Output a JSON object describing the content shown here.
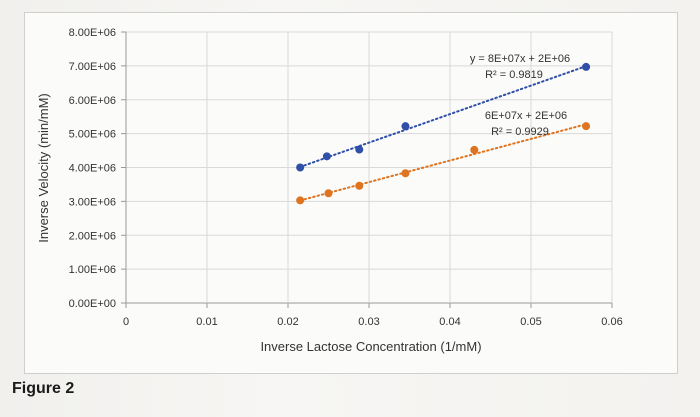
{
  "figure_label": "Figure 2",
  "chart_data": {
    "type": "scatter",
    "title": "",
    "xlabel": "Inverse Lactose Concentration (1/mM)",
    "ylabel": "Inverse Velocity (min/mM)",
    "xlim": [
      0,
      0.06
    ],
    "ylim": [
      0,
      8000000
    ],
    "x_ticks": [
      "0",
      "0.01",
      "0.02",
      "0.03",
      "0.04",
      "0.05",
      "0.06"
    ],
    "y_ticks": [
      "0.00E+00",
      "1.00E+06",
      "2.00E+06",
      "3.00E+06",
      "4.00E+06",
      "5.00E+06",
      "6.00E+06",
      "7.00E+06",
      "8.00E+06"
    ],
    "grid": true,
    "series": [
      {
        "color": "#2f4fa8",
        "points": [
          {
            "x": 0.0215,
            "y": 4000000
          },
          {
            "x": 0.0248,
            "y": 4330000
          },
          {
            "x": 0.0288,
            "y": 4530000
          },
          {
            "x": 0.0345,
            "y": 5220000
          },
          {
            "x": 0.0568,
            "y": 6970000
          }
        ],
        "trendline": {
          "equation": "y = 8E+07x + 2E+06",
          "r2": "R² = 0.9819"
        }
      },
      {
        "color": "#de7320",
        "points": [
          {
            "x": 0.0215,
            "y": 3030000
          },
          {
            "x": 0.025,
            "y": 3240000
          },
          {
            "x": 0.0288,
            "y": 3460000
          },
          {
            "x": 0.0345,
            "y": 3830000
          },
          {
            "x": 0.043,
            "y": 4520000
          },
          {
            "x": 0.0568,
            "y": 5220000
          }
        ],
        "trendline": {
          "equation": "6E+07x + 2E+06",
          "r2": "R² = 0.9929"
        }
      }
    ]
  }
}
